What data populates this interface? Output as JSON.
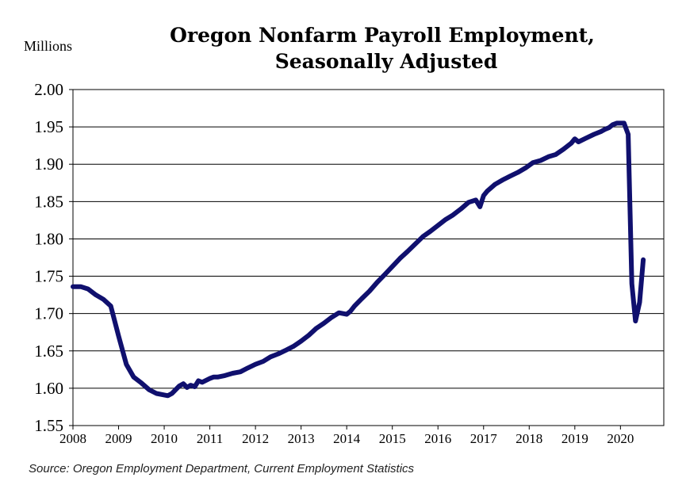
{
  "chart_data": {
    "type": "line",
    "title": "Oregon Nonfarm Payroll Employment,",
    "subtitle": "Seasonally Adjusted",
    "unit_label": "Millions",
    "source": "Source: Oregon Employment Department, Current Employment Statistics",
    "ylim": [
      1.55,
      2.0
    ],
    "yticks": [
      "2.00",
      "1.95",
      "1.90",
      "1.85",
      "1.80",
      "1.75",
      "1.70",
      "1.65",
      "1.60",
      "1.55"
    ],
    "xlim": [
      2008.0,
      2020.95
    ],
    "xticks": [
      "2008",
      "2009",
      "2010",
      "2011",
      "2012",
      "2013",
      "2014",
      "2015",
      "2016",
      "2017",
      "2018",
      "2019",
      "2020"
    ],
    "grid": "horizontal",
    "line_color": "#10106e",
    "series": [
      {
        "x": [
          2008.0,
          2008.17,
          2008.33,
          2008.5,
          2008.67,
          2008.83,
          2009.0,
          2009.17,
          2009.33,
          2009.5,
          2009.67,
          2009.83,
          2010.0,
          2010.08,
          2010.17,
          2010.33,
          2010.42,
          2010.5,
          2010.58,
          2010.67,
          2010.75,
          2010.83,
          2011.0,
          2011.08,
          2011.17,
          2011.33,
          2011.5,
          2011.67,
          2011.83,
          2012.0,
          2012.17,
          2012.33,
          2012.5,
          2012.67,
          2012.83,
          2013.0,
          2013.17,
          2013.33,
          2013.5,
          2013.67,
          2013.83,
          2014.0,
          2014.08,
          2014.17,
          2014.33,
          2014.5,
          2014.67,
          2014.83,
          2015.0,
          2015.17,
          2015.33,
          2015.5,
          2015.67,
          2015.83,
          2016.0,
          2016.17,
          2016.33,
          2016.5,
          2016.67,
          2016.83,
          2016.92,
          2017.0,
          2017.08,
          2017.25,
          2017.42,
          2017.58,
          2017.75,
          2017.92,
          2018.08,
          2018.25,
          2018.42,
          2018.58,
          2018.75,
          2018.92,
          2019.0,
          2019.08,
          2019.25,
          2019.42,
          2019.58,
          2019.67,
          2019.75,
          2019.83,
          2019.92,
          2020.0,
          2020.08,
          2020.17,
          2020.25,
          2020.33,
          2020.42,
          2020.5
        ],
        "values": [
          1.736,
          1.736,
          1.733,
          1.725,
          1.719,
          1.71,
          1.67,
          1.632,
          1.615,
          1.607,
          1.598,
          1.593,
          1.591,
          1.59,
          1.593,
          1.603,
          1.606,
          1.601,
          1.604,
          1.602,
          1.61,
          1.608,
          1.613,
          1.615,
          1.615,
          1.617,
          1.62,
          1.622,
          1.627,
          1.632,
          1.636,
          1.642,
          1.646,
          1.651,
          1.656,
          1.663,
          1.671,
          1.68,
          1.687,
          1.695,
          1.701,
          1.699,
          1.703,
          1.71,
          1.72,
          1.73,
          1.742,
          1.752,
          1.763,
          1.774,
          1.783,
          1.793,
          1.803,
          1.81,
          1.818,
          1.826,
          1.832,
          1.84,
          1.849,
          1.852,
          1.843,
          1.858,
          1.864,
          1.873,
          1.879,
          1.884,
          1.889,
          1.895,
          1.902,
          1.905,
          1.91,
          1.913,
          1.92,
          1.928,
          1.934,
          1.93,
          1.935,
          1.94,
          1.944,
          1.947,
          1.949,
          1.953,
          1.955,
          1.955,
          1.955,
          1.94,
          1.74,
          1.69,
          1.715,
          1.772
        ]
      }
    ]
  }
}
